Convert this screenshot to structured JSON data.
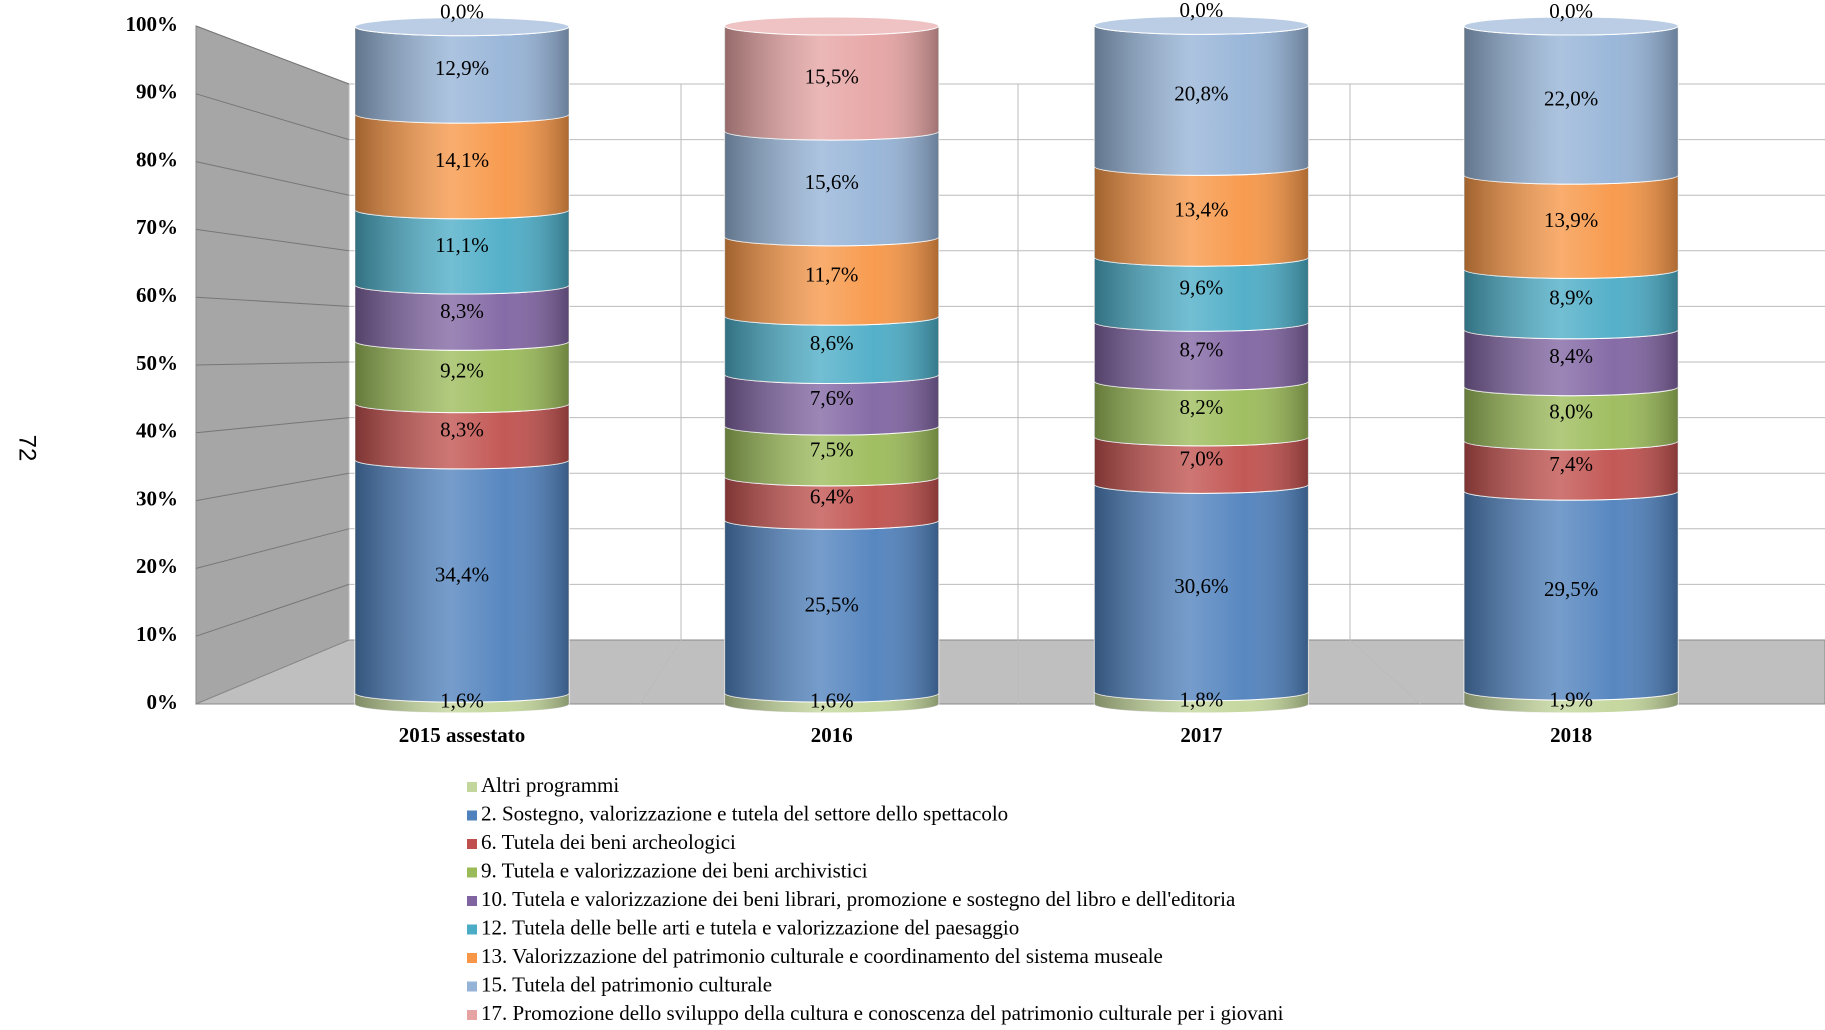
{
  "page_number": "72",
  "chart_data": {
    "type": "stacked_bar",
    "categories": [
      "2015 assestato",
      "2016",
      "2017",
      "2018"
    ],
    "series": [
      {
        "name": "Altri programmi",
        "color": "#c3d69b",
        "values": [
          1.6,
          1.6,
          1.8,
          1.9
        ],
        "value_labels": [
          "1,6%",
          "1,6%",
          "1,8%",
          "1,9%"
        ]
      },
      {
        "name": "2. Sostegno, valorizzazione e tutela del settore dello spettacolo",
        "color": "#4f81bd",
        "values": [
          34.4,
          25.5,
          30.6,
          29.5
        ],
        "value_labels": [
          "34,4%",
          "25,5%",
          "30,6%",
          "29,5%"
        ]
      },
      {
        "name": "6. Tutela dei beni archeologici",
        "color": "#c0504d",
        "values": [
          8.3,
          6.4,
          7.0,
          7.4
        ],
        "value_labels": [
          "8,3%",
          "6,4%",
          "7,0%",
          "7,4%"
        ]
      },
      {
        "name": "9. Tutela e valorizzazione dei beni archivistici",
        "color": "#9bbb59",
        "values": [
          9.2,
          7.5,
          8.2,
          8.0
        ],
        "value_labels": [
          "9,2%",
          "7,5%",
          "8,2%",
          "8,0%"
        ]
      },
      {
        "name": "10. Tutela e valorizzazione dei beni librari, promozione e sostegno del libro e dell'editoria",
        "color": "#8064a2",
        "values": [
          8.3,
          7.6,
          8.7,
          8.4
        ],
        "value_labels": [
          "8,3%",
          "7,6%",
          "8,7%",
          "8,4%"
        ]
      },
      {
        "name": "12. Tutela delle belle arti e tutela e valorizzazione del paesaggio",
        "color": "#4bacc6",
        "values": [
          11.1,
          8.6,
          9.6,
          8.9
        ],
        "value_labels": [
          "11,1%",
          "8,6%",
          "9,6%",
          "8,9%"
        ]
      },
      {
        "name": "13. Valorizzazione del patrimonio culturale e coordinamento del sistema museale",
        "color": "#f79646",
        "values": [
          14.1,
          11.7,
          13.4,
          13.9
        ],
        "value_labels": [
          "14,1%",
          "11,7%",
          "13,4%",
          "13,9%"
        ]
      },
      {
        "name": "15. Tutela del patrimonio culturale",
        "color": "#95b3d7",
        "values": [
          12.9,
          15.6,
          20.8,
          22.0
        ],
        "value_labels": [
          "12,9%",
          "15,6%",
          "20,8%",
          "22,0%"
        ]
      },
      {
        "name": "17. Promozione dello sviluppo della cultura e conoscenza del patrimonio culturale per i giovani",
        "color": "#e6a3a3",
        "values": [
          0.0,
          15.5,
          0.0,
          0.0
        ],
        "value_labels": [
          "0,0%",
          "15,5%",
          "0,0%",
          "0,0%"
        ]
      }
    ],
    "ylim": [
      0,
      100
    ],
    "yticks": [
      {
        "value": 0,
        "label": "0%"
      },
      {
        "value": 10,
        "label": "10%"
      },
      {
        "value": 20,
        "label": "20%"
      },
      {
        "value": 30,
        "label": "30%"
      },
      {
        "value": 40,
        "label": "40%"
      },
      {
        "value": 50,
        "label": "50%"
      },
      {
        "value": 60,
        "label": "60%"
      },
      {
        "value": 70,
        "label": "70%"
      },
      {
        "value": 80,
        "label": "80%"
      },
      {
        "value": 90,
        "label": "90%"
      },
      {
        "value": 100,
        "label": "100%"
      }
    ],
    "grid": true,
    "legend": "bottom"
  }
}
